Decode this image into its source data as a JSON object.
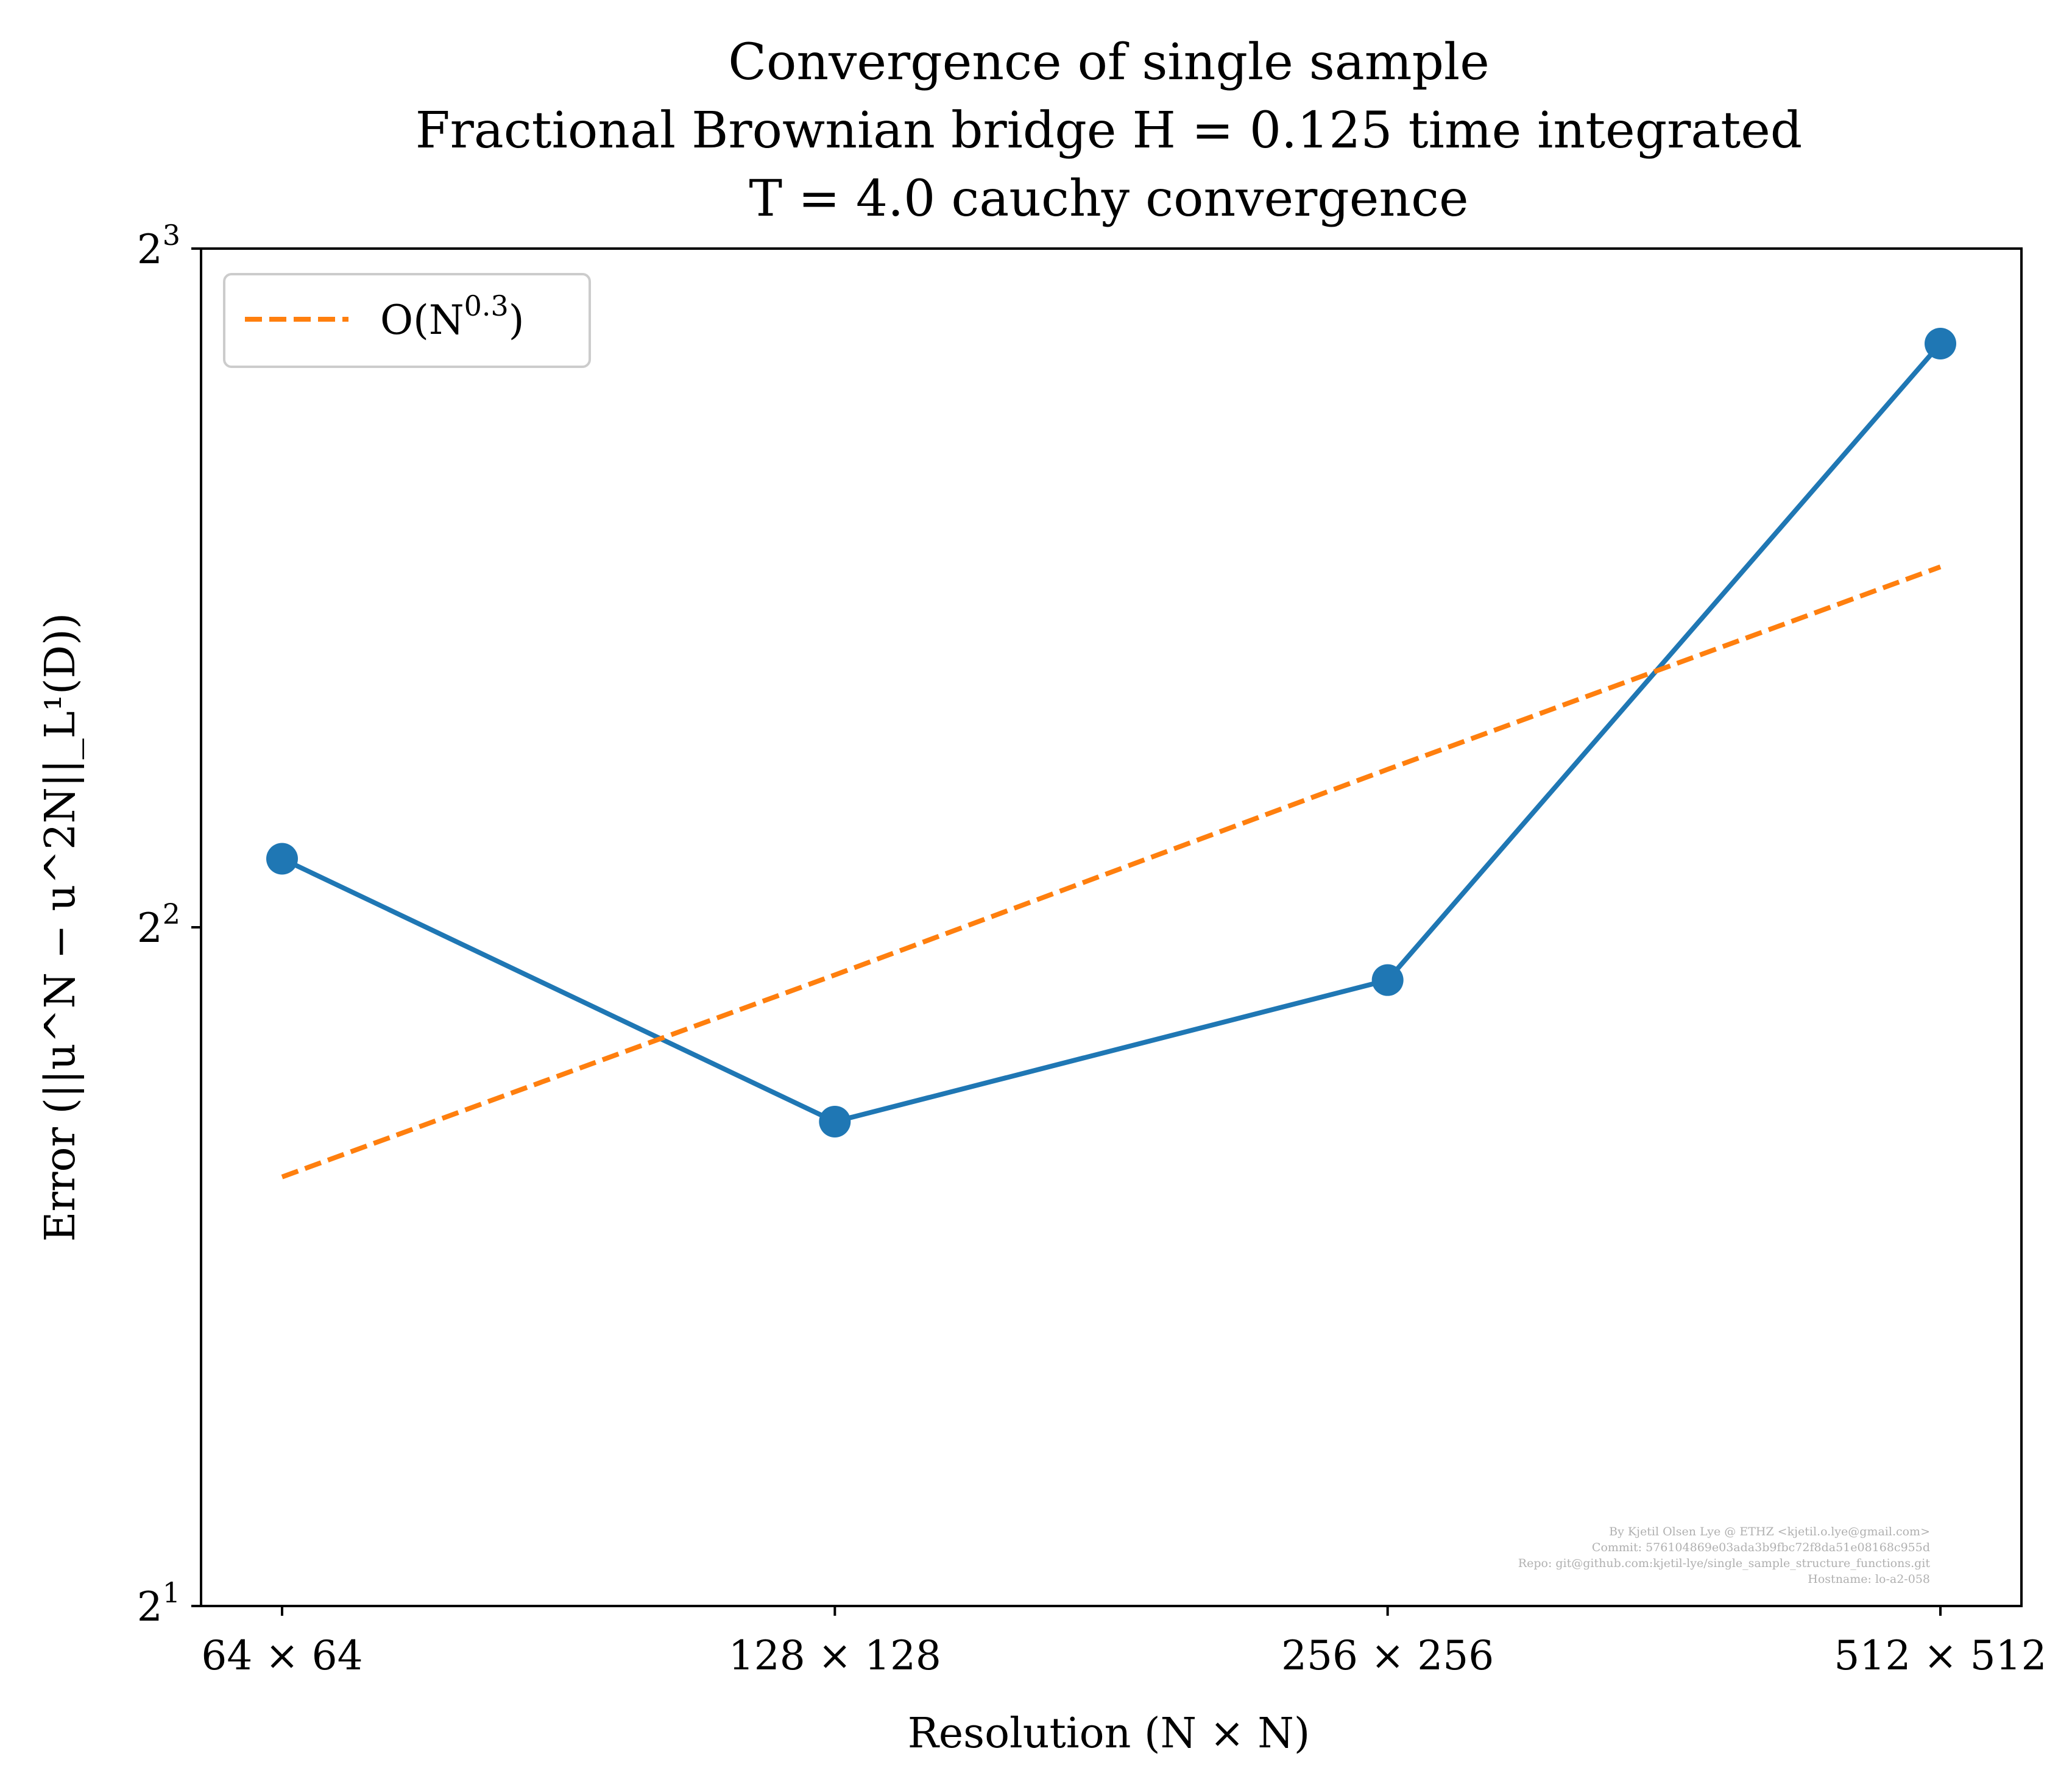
{
  "chart_data": {
    "type": "line",
    "title_lines": [
      "Convergence of single sample",
      "Fractional Brownian bridge H = 0.125 time integrated",
      "T = 4.0 cauchy convergence"
    ],
    "xlabel": "Resolution (N × N)",
    "ylabel": "Error (||u^N − u^2N||_L¹(D))",
    "categories": [
      "64 × 64",
      "128 × 128",
      "256 × 256",
      "512 × 512"
    ],
    "x": [
      64,
      128,
      256,
      512
    ],
    "x_scale": "log2",
    "y_scale": "log2",
    "ylim": [
      2,
      8
    ],
    "yticks": [
      {
        "value": 2,
        "base": "2",
        "exp": "1"
      },
      {
        "value": 4,
        "base": "2",
        "exp": "2"
      },
      {
        "value": 8,
        "base": "2",
        "exp": "3"
      }
    ],
    "series": [
      {
        "values": [
          4.29,
          3.28,
          3.79,
          7.26
        ],
        "color": "#1f77b4",
        "style": "solid",
        "marker": "circle"
      },
      {
        "name": "O(N^0.3)",
        "values": [
          3.1,
          3.81,
          4.7,
          5.78
        ],
        "color": "#ff7f0e",
        "style": "dashed",
        "marker": "none"
      }
    ],
    "legend": {
      "placement": "upper-left",
      "entries": [
        {
          "label_base": "O(N",
          "label_exp": "0.3",
          "label_end": ")"
        }
      ]
    },
    "grid": false,
    "watermark_lines": [
      "By Kjetil Olsen Lye @ ETHZ <kjetil.o.lye@gmail.com>",
      "Commit: 576104869e03ada3b9fbc72f8da51e08168c955d",
      "Repo: git@github.com:kjetil-lye/single_sample_structure_functions.git",
      "Hostname: lo-a2-058"
    ]
  }
}
